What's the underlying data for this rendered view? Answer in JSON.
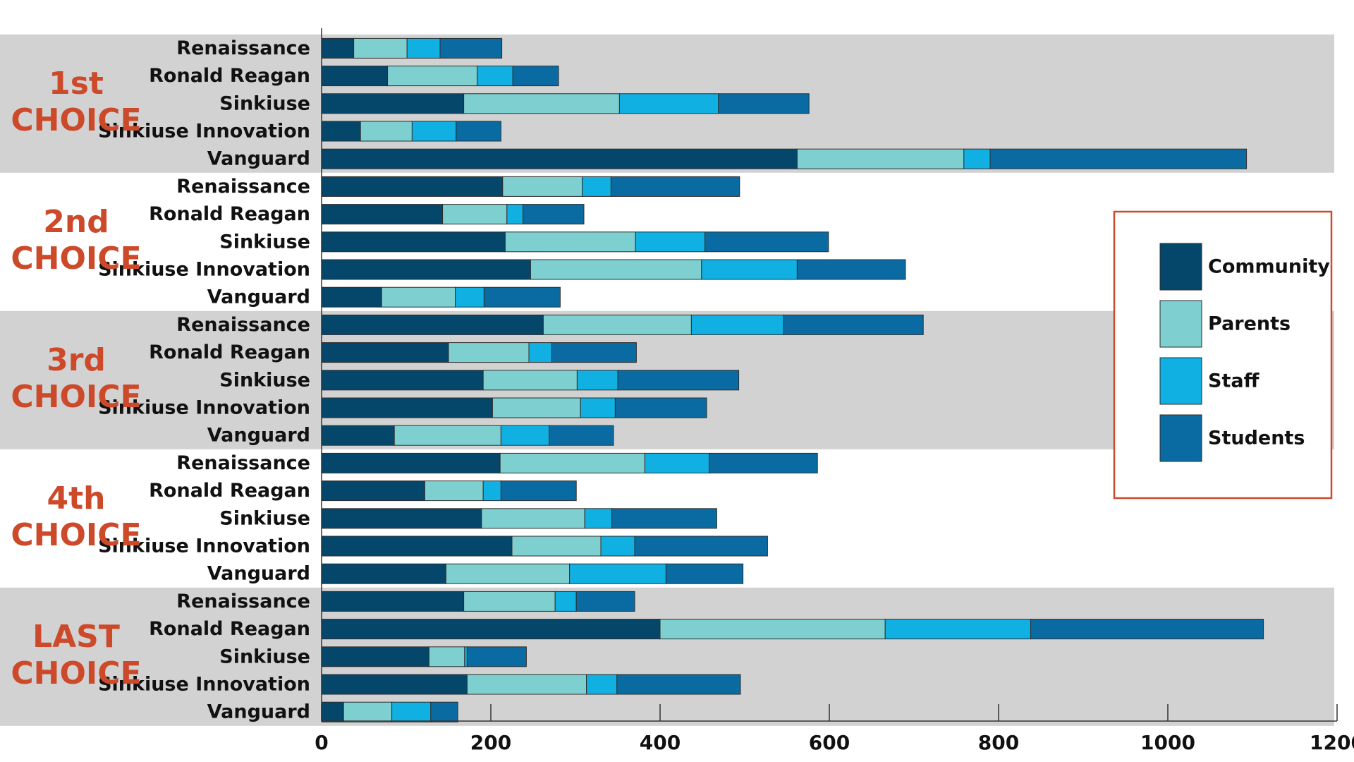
{
  "chart_data": {
    "type": "bar",
    "orientation": "horizontal",
    "stacked": true,
    "title": "",
    "xlabel": "",
    "ylabel": "",
    "xlim": [
      0,
      1200
    ],
    "x_ticks": [
      0,
      200,
      400,
      600,
      800,
      1000,
      1200
    ],
    "grid": false,
    "legend": "right",
    "series_names": [
      "Community",
      "Parents",
      "Staff",
      "Students"
    ],
    "colors": [
      "#04476a",
      "#7ecfcf",
      "#10b0e3",
      "#0a6ba3"
    ],
    "group_band_color": "#d2d2d2",
    "groups": [
      {
        "label": [
          "1st",
          "CHOICE"
        ],
        "shaded": true,
        "categories": [
          "Renaissance",
          "Ronald Reagan",
          "Sinkiuse",
          "Sinkiuse Innovation",
          "Vanguard"
        ],
        "values": [
          [
            38,
            63,
            39,
            73
          ],
          [
            78,
            106,
            42,
            54
          ],
          [
            168,
            184,
            117,
            107
          ],
          [
            46,
            61,
            52,
            53
          ],
          [
            562,
            197,
            31,
            303
          ]
        ]
      },
      {
        "label": [
          "2nd",
          "CHOICE"
        ],
        "shaded": false,
        "categories": [
          "Renaissance",
          "Ronald Reagan",
          "Sinkiuse",
          "Sinkiuse Innovation",
          "Vanguard"
        ],
        "values": [
          [
            214,
            94,
            34,
            152
          ],
          [
            143,
            76,
            19,
            72
          ],
          [
            217,
            154,
            82,
            146
          ],
          [
            247,
            202,
            113,
            128
          ],
          [
            71,
            87,
            34,
            90
          ]
        ]
      },
      {
        "label": [
          "3rd",
          "CHOICE"
        ],
        "shaded": true,
        "categories": [
          "Renaissance",
          "Ronald Reagan",
          "Sinkiuse",
          "Sinkiuse Innovation",
          "Vanguard"
        ],
        "values": [
          [
            262,
            175,
            109,
            165
          ],
          [
            150,
            95,
            27,
            100
          ],
          [
            191,
            111,
            48,
            143
          ],
          [
            202,
            104,
            41,
            108
          ],
          [
            86,
            126,
            57,
            76
          ]
        ]
      },
      {
        "label": [
          "4th",
          "CHOICE"
        ],
        "shaded": false,
        "categories": [
          "Renaissance",
          "Ronald Reagan",
          "Sinkiuse",
          "Sinkiuse Innovation",
          "Vanguard"
        ],
        "values": [
          [
            211,
            171,
            76,
            128
          ],
          [
            122,
            69,
            21,
            89
          ],
          [
            189,
            122,
            32,
            124
          ],
          [
            225,
            105,
            40,
            157
          ],
          [
            147,
            146,
            114,
            91
          ]
        ]
      },
      {
        "label": [
          "LAST",
          "CHOICE"
        ],
        "shaded": true,
        "categories": [
          "Renaissance",
          "Ronald Reagan",
          "Sinkiuse",
          "Sinkiuse Innovation",
          "Vanguard"
        ],
        "values": [
          [
            168,
            108,
            25,
            69
          ],
          [
            400,
            266,
            172,
            275
          ],
          [
            127,
            42,
            3,
            70
          ],
          [
            172,
            141,
            36,
            146
          ],
          [
            26,
            57,
            46,
            32
          ]
        ]
      }
    ]
  }
}
